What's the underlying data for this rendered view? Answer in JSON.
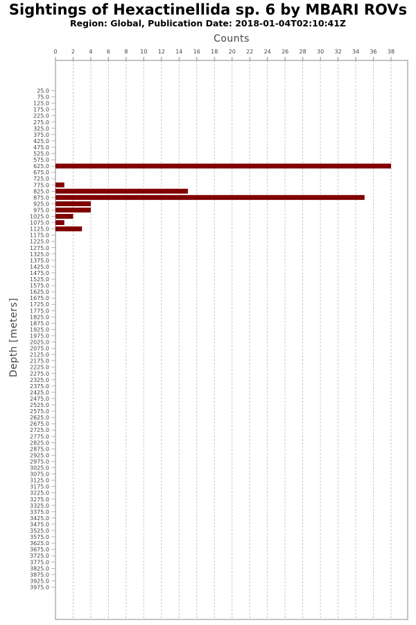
{
  "chart_data": {
    "type": "bar",
    "orientation": "horizontal",
    "title": "Sightings of Hexactinellida sp. 6 by MBARI ROVs",
    "subtitle": "Region: Global, Publication Date: 2018-01-04T02:10:41Z",
    "xlabel": "Counts",
    "ylabel": "Depth [meters]",
    "xlim": [
      0,
      40
    ],
    "x_ticks": [
      "0",
      "2",
      "4",
      "6",
      "8",
      "10",
      "12",
      "14",
      "16",
      "18",
      "20",
      "22",
      "24",
      "26",
      "28",
      "30",
      "32",
      "34",
      "36",
      "38"
    ],
    "categories": [
      "25.0",
      "75.0",
      "125.0",
      "175.0",
      "225.0",
      "275.0",
      "325.0",
      "375.0",
      "425.0",
      "475.0",
      "525.0",
      "575.0",
      "625.0",
      "675.0",
      "725.0",
      "775.0",
      "825.0",
      "875.0",
      "925.0",
      "975.0",
      "1025.0",
      "1075.0",
      "1125.0",
      "1175.0",
      "1225.0",
      "1275.0",
      "1325.0",
      "1375.0",
      "1425.0",
      "1475.0",
      "1525.0",
      "1575.0",
      "1625.0",
      "1675.0",
      "1725.0",
      "1775.0",
      "1825.0",
      "1875.0",
      "1925.0",
      "1975.0",
      "2025.0",
      "2075.0",
      "2125.0",
      "2175.0",
      "2225.0",
      "2275.0",
      "2325.0",
      "2375.0",
      "2425.0",
      "2475.0",
      "2525.0",
      "2575.0",
      "2625.0",
      "2675.0",
      "2725.0",
      "2775.0",
      "2825.0",
      "2875.0",
      "2925.0",
      "2975.0",
      "3025.0",
      "3075.0",
      "3125.0",
      "3175.0",
      "3225.0",
      "3275.0",
      "3325.0",
      "3375.0",
      "3425.0",
      "3475.0",
      "3525.0",
      "3575.0",
      "3625.0",
      "3675.0",
      "3725.0",
      "3775.0",
      "3825.0",
      "3875.0",
      "3925.0",
      "3975.0"
    ],
    "values": [
      0,
      0,
      0,
      0,
      0,
      0,
      0,
      0,
      0,
      0,
      0,
      0,
      38,
      0,
      0,
      1,
      15,
      35,
      4,
      4,
      2,
      1,
      3,
      0,
      0,
      0,
      0,
      0,
      0,
      0,
      0,
      0,
      0,
      0,
      0,
      0,
      0,
      0,
      0,
      0,
      0,
      0,
      0,
      0,
      0,
      0,
      0,
      0,
      0,
      0,
      0,
      0,
      0,
      0,
      0,
      0,
      0,
      0,
      0,
      0,
      0,
      0,
      0,
      0,
      0,
      0,
      0,
      0,
      0,
      0,
      0,
      0,
      0,
      0,
      0,
      0,
      0,
      0,
      0,
      0
    ],
    "bar_color": "#800000",
    "grid": true
  }
}
